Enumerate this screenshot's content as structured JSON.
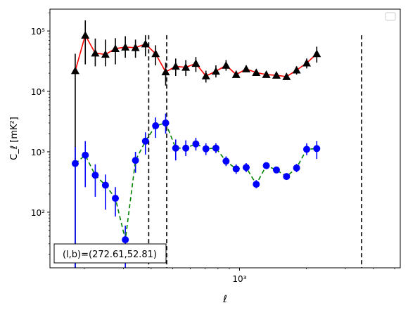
{
  "chart_data": {
    "type": "line",
    "xlabel": "ℓ",
    "ylabel": "C_ℓ  [mK²]",
    "xscale": "log",
    "yscale": "log",
    "xlim": [
      140,
      5300
    ],
    "ylim": [
      12,
      230000
    ],
    "x_ticks": [
      {
        "value": 1000,
        "label": "10³"
      }
    ],
    "y_ticks": [
      {
        "value": 100,
        "label": "10²"
      },
      {
        "value": 1000,
        "label": "10³"
      },
      {
        "value": 10000,
        "label": "10⁴"
      },
      {
        "value": 100000,
        "label": "10⁵"
      }
    ],
    "vlines": [
      390,
      470,
      3550
    ],
    "annotation": "(l,b)=(272.61,52.81)",
    "legend": "top-right (empty)",
    "series": [
      {
        "marker": "triangle",
        "marker_color": "#000000",
        "line_color": "#ff0000",
        "line_style": "solid",
        "errorbar_color": "#000000",
        "points": [
          {
            "x": 182,
            "y": 22000,
            "lo": 12,
            "hi": 42000
          },
          {
            "x": 202,
            "y": 85000,
            "lo": 28000,
            "hi": 150000
          },
          {
            "x": 224,
            "y": 43000,
            "lo": 26000,
            "hi": 75000
          },
          {
            "x": 249,
            "y": 41000,
            "lo": 26000,
            "hi": 72000
          },
          {
            "x": 276,
            "y": 51000,
            "lo": 28000,
            "hi": 76000
          },
          {
            "x": 306,
            "y": 54000,
            "lo": 36000,
            "hi": 82000
          },
          {
            "x": 340,
            "y": 53000,
            "lo": 36000,
            "hi": 72000
          },
          {
            "x": 377,
            "y": 61000,
            "lo": 38000,
            "hi": 85000
          },
          {
            "x": 419,
            "y": 42000,
            "lo": 27000,
            "hi": 58000
          },
          {
            "x": 465,
            "y": 21000,
            "lo": 12500,
            "hi": 30000
          },
          {
            "x": 516,
            "y": 26000,
            "lo": 18000,
            "hi": 35000
          },
          {
            "x": 573,
            "y": 25000,
            "lo": 18000,
            "hi": 33000
          },
          {
            "x": 636,
            "y": 29000,
            "lo": 21000,
            "hi": 37000
          },
          {
            "x": 706,
            "y": 18000,
            "lo": 14000,
            "hi": 22000
          },
          {
            "x": 783,
            "y": 21500,
            "lo": 17000,
            "hi": 27000
          },
          {
            "x": 870,
            "y": 27000,
            "lo": 22000,
            "hi": 33000
          },
          {
            "x": 966,
            "y": 19000,
            "lo": 17000,
            "hi": 22000
          },
          {
            "x": 1072,
            "y": 23500,
            "lo": 21000,
            "hi": 27000
          },
          {
            "x": 1190,
            "y": 20500,
            "lo": 18500,
            "hi": 22500
          },
          {
            "x": 1321,
            "y": 19000,
            "lo": 17500,
            "hi": 20500
          },
          {
            "x": 1467,
            "y": 18500,
            "lo": 17200,
            "hi": 19800
          },
          {
            "x": 1629,
            "y": 17500,
            "lo": 16300,
            "hi": 18600
          },
          {
            "x": 1808,
            "y": 22500,
            "lo": 19000,
            "hi": 26000
          },
          {
            "x": 2008,
            "y": 29500,
            "lo": 24000,
            "hi": 35000
          },
          {
            "x": 2229,
            "y": 42000,
            "lo": 30000,
            "hi": 55000
          }
        ]
      },
      {
        "marker": "circle",
        "marker_color": "#0000ff",
        "line_color": "#008000",
        "line_style": "dashed",
        "errorbar_color": "#0000ff",
        "points": [
          {
            "x": 182,
            "y": 640,
            "lo": 12,
            "hi": 1200
          },
          {
            "x": 202,
            "y": 880,
            "lo": 260,
            "hi": 1500
          },
          {
            "x": 224,
            "y": 410,
            "lo": 180,
            "hi": 620
          },
          {
            "x": 249,
            "y": 280,
            "lo": 110,
            "hi": 420
          },
          {
            "x": 276,
            "y": 170,
            "lo": 85,
            "hi": 260
          },
          {
            "x": 306,
            "y": 35,
            "lo": 12,
            "hi": 60
          },
          {
            "x": 340,
            "y": 720,
            "lo": 450,
            "hi": 1000
          },
          {
            "x": 377,
            "y": 1500,
            "lo": 900,
            "hi": 2100
          },
          {
            "x": 419,
            "y": 2700,
            "lo": 1700,
            "hi": 3700
          },
          {
            "x": 465,
            "y": 3000,
            "lo": 2000,
            "hi": 4300
          },
          {
            "x": 516,
            "y": 1150,
            "lo": 720,
            "hi": 1600
          },
          {
            "x": 573,
            "y": 1150,
            "lo": 850,
            "hi": 1550
          },
          {
            "x": 636,
            "y": 1350,
            "lo": 1050,
            "hi": 1700
          },
          {
            "x": 706,
            "y": 1120,
            "lo": 880,
            "hi": 1380
          },
          {
            "x": 783,
            "y": 1150,
            "lo": 950,
            "hi": 1380
          },
          {
            "x": 870,
            "y": 700,
            "lo": 580,
            "hi": 840
          },
          {
            "x": 966,
            "y": 520,
            "lo": 430,
            "hi": 620
          },
          {
            "x": 1072,
            "y": 550,
            "lo": 460,
            "hi": 650
          },
          {
            "x": 1190,
            "y": 290,
            "lo": 250,
            "hi": 340
          },
          {
            "x": 1321,
            "y": 590,
            "lo": 530,
            "hi": 650
          },
          {
            "x": 1467,
            "y": 500,
            "lo": 450,
            "hi": 550
          },
          {
            "x": 1629,
            "y": 390,
            "lo": 350,
            "hi": 430
          },
          {
            "x": 1808,
            "y": 540,
            "lo": 460,
            "hi": 630
          },
          {
            "x": 2008,
            "y": 1100,
            "lo": 880,
            "hi": 1380
          },
          {
            "x": 2229,
            "y": 1130,
            "lo": 760,
            "hi": 1500
          }
        ]
      }
    ]
  }
}
